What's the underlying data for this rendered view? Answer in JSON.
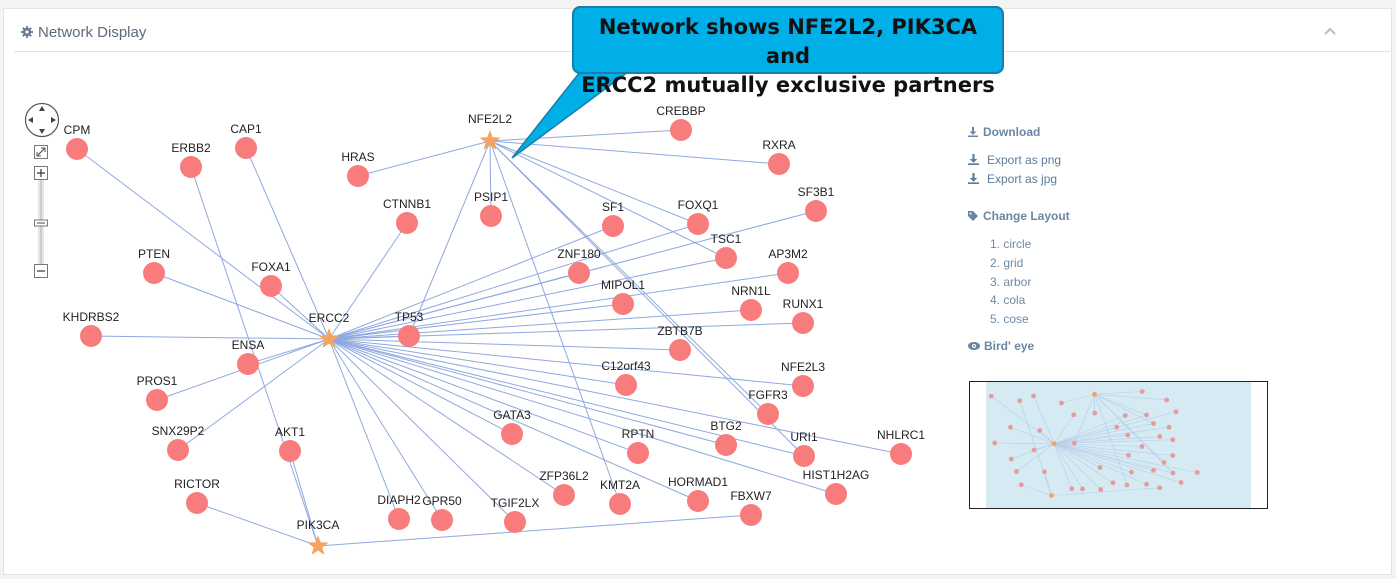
{
  "panel": {
    "title": "Network Display"
  },
  "callout": {
    "line1": "Network shows NFE2L2, PIK3CA and",
    "line2": "ERCC2 mutually exclusive partners",
    "color": "#00aee8"
  },
  "sidebar": {
    "download_label": "Download",
    "export_png": "Export as png",
    "export_jpg": "Export as jpg",
    "change_layout_label": "Change Layout",
    "layouts": [
      "1. circle",
      "2. grid",
      "3. arbor",
      "4. cola",
      "5. cose"
    ],
    "birds_eye_label": "Bird' eye"
  },
  "colors": {
    "node": "#f87c7c",
    "hub": "#f4a460",
    "edge": "#8fa8e0"
  },
  "network": {
    "hubs": [
      "ERCC2",
      "NFE2L2",
      "PIK3CA"
    ],
    "nodes": [
      "CPM",
      "ERBB2",
      "CAP1",
      "HRAS",
      "NFE2L2",
      "CREBBP",
      "RXRA",
      "CTNNB1",
      "PSIP1",
      "SF1",
      "FOXQ1",
      "SF3B1",
      "TSC1",
      "ZNF180",
      "AP3M2",
      "PTEN",
      "FOXA1",
      "MIPOL1",
      "NRN1L",
      "RUNX1",
      "KHDRBS2",
      "ERCC2",
      "TP53",
      "ZBTB7B",
      "ENSA",
      "C12orf43",
      "NFE2L3",
      "PROS1",
      "FGFR3",
      "SNX29P2",
      "GATA3",
      "AKT1",
      "RPTN",
      "BTG2",
      "URI1",
      "NHLRC1",
      "ZFP36L2",
      "KMT2A",
      "HORMAD1",
      "HIST1H2AG",
      "RICTOR",
      "DIAPH2",
      "GPR50",
      "TGIF2LX",
      "FBXW7",
      "PIK3CA"
    ],
    "edges": [
      [
        "ERCC2",
        "CPM"
      ],
      [
        "ERCC2",
        "CAP1"
      ],
      [
        "ERCC2",
        "FOXA1"
      ],
      [
        "ERCC2",
        "PTEN"
      ],
      [
        "ERCC2",
        "KHDRBS2"
      ],
      [
        "ERCC2",
        "ENSA"
      ],
      [
        "ERCC2",
        "PROS1"
      ],
      [
        "ERCC2",
        "SNX29P2"
      ],
      [
        "ERCC2",
        "CTNNB1"
      ],
      [
        "ERCC2",
        "TP53"
      ],
      [
        "ERCC2",
        "ZNF180"
      ],
      [
        "ERCC2",
        "SF1"
      ],
      [
        "ERCC2",
        "FOXQ1"
      ],
      [
        "ERCC2",
        "SF3B1"
      ],
      [
        "ERCC2",
        "AP3M2"
      ],
      [
        "ERCC2",
        "MIPOL1"
      ],
      [
        "ERCC2",
        "NRN1L"
      ],
      [
        "ERCC2",
        "RUNX1"
      ],
      [
        "ERCC2",
        "ZBTB7B"
      ],
      [
        "ERCC2",
        "C12orf43"
      ],
      [
        "ERCC2",
        "NFE2L3"
      ],
      [
        "ERCC2",
        "GATA3"
      ],
      [
        "ERCC2",
        "RPTN"
      ],
      [
        "ERCC2",
        "BTG2"
      ],
      [
        "ERCC2",
        "URI1"
      ],
      [
        "ERCC2",
        "NHLRC1"
      ],
      [
        "ERCC2",
        "ZFP36L2"
      ],
      [
        "ERCC2",
        "HORMAD1"
      ],
      [
        "ERCC2",
        "HIST1H2AG"
      ],
      [
        "ERCC2",
        "DIAPH2"
      ],
      [
        "ERCC2",
        "GPR50"
      ],
      [
        "ERCC2",
        "TGIF2LX"
      ],
      [
        "ERCC2",
        "TSC1"
      ],
      [
        "NFE2L2",
        "HRAS"
      ],
      [
        "NFE2L2",
        "CREBBP"
      ],
      [
        "NFE2L2",
        "RXRA"
      ],
      [
        "NFE2L2",
        "PSIP1"
      ],
      [
        "NFE2L2",
        "TSC1"
      ],
      [
        "NFE2L2",
        "FOXQ1"
      ],
      [
        "NFE2L2",
        "FGFR3"
      ],
      [
        "NFE2L2",
        "KMT2A"
      ],
      [
        "NFE2L2",
        "TP53"
      ],
      [
        "NFE2L2",
        "URI1"
      ],
      [
        "PIK3CA",
        "RICTOR"
      ],
      [
        "PIK3CA",
        "AKT1"
      ],
      [
        "PIK3CA",
        "FBXW7"
      ],
      [
        "PIK3CA",
        "ERBB2"
      ]
    ]
  }
}
